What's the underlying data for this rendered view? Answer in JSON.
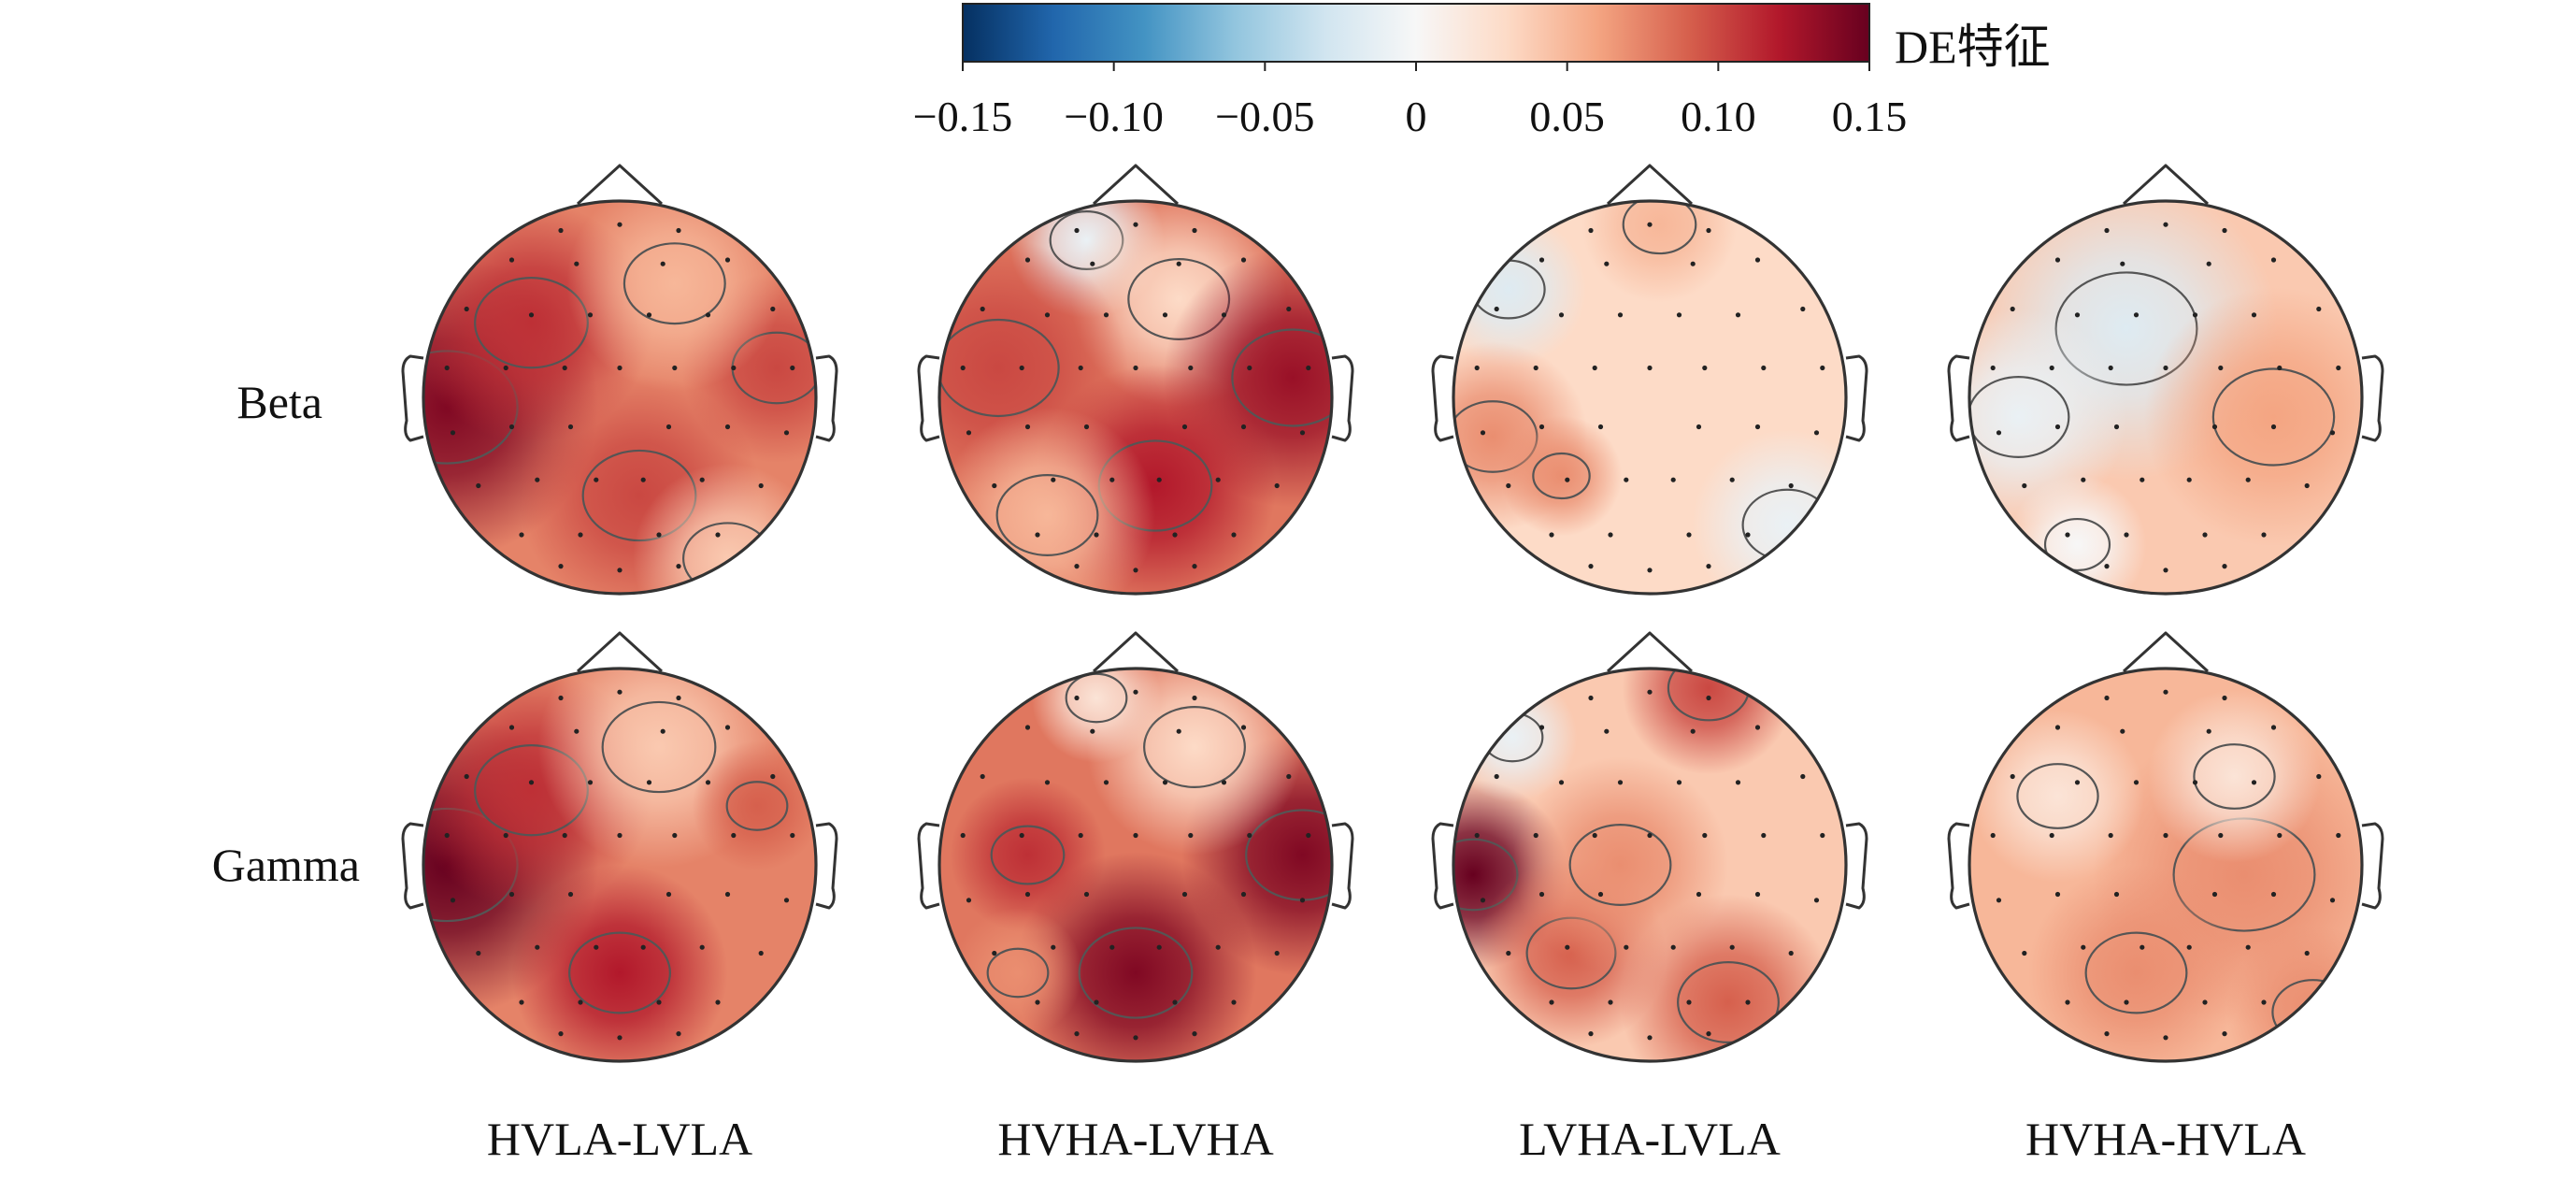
{
  "chart_data": {
    "type": "heatmap",
    "subtype": "eeg-topographic-map-grid",
    "rows": [
      "Beta",
      "Gamma"
    ],
    "columns": [
      "HVLA-LVLA",
      "HVHA-LVHA",
      "LVHA-LVLA",
      "HVHA-HVLA"
    ],
    "colorbar": {
      "title": "DE特征",
      "colormap": "RdBu_r",
      "range": [
        -0.15,
        0.15
      ],
      "ticks": [
        -0.15,
        -0.1,
        -0.05,
        0,
        0.05,
        0.1,
        0.15
      ],
      "tick_labels": [
        "−0.15",
        "−0.10",
        "−0.05",
        "0",
        "0.05",
        "0.10",
        "0.15"
      ]
    },
    "maps": [
      {
        "row": "Beta",
        "column": "HVLA-LVLA",
        "base": 0.075,
        "blobs": [
          {
            "u": -0.88,
            "v": 0.05,
            "value": 0.14,
            "spread": 0.35
          },
          {
            "u": -0.45,
            "v": -0.38,
            "value": 0.11,
            "spread": 0.28
          },
          {
            "u": 0.1,
            "v": 0.5,
            "value": 0.1,
            "spread": 0.28
          },
          {
            "u": 0.8,
            "v": -0.15,
            "value": 0.1,
            "spread": 0.22
          },
          {
            "u": 0.28,
            "v": -0.58,
            "value": 0.05,
            "spread": 0.25
          },
          {
            "u": 0.55,
            "v": 0.82,
            "value": 0.04,
            "spread": 0.22
          }
        ]
      },
      {
        "row": "Beta",
        "column": "HVHA-LVHA",
        "base": 0.08,
        "blobs": [
          {
            "u": -0.25,
            "v": -0.8,
            "value": -0.01,
            "spread": 0.18
          },
          {
            "u": 0.22,
            "v": -0.5,
            "value": 0.03,
            "spread": 0.25
          },
          {
            "u": 0.8,
            "v": -0.1,
            "value": 0.13,
            "spread": 0.3
          },
          {
            "u": 0.1,
            "v": 0.45,
            "value": 0.12,
            "spread": 0.28
          },
          {
            "u": -0.7,
            "v": -0.15,
            "value": 0.1,
            "spread": 0.3
          },
          {
            "u": -0.45,
            "v": 0.6,
            "value": 0.05,
            "spread": 0.25
          }
        ]
      },
      {
        "row": "Beta",
        "column": "LVHA-LVLA",
        "base": 0.03,
        "blobs": [
          {
            "u": -0.72,
            "v": -0.55,
            "value": -0.02,
            "spread": 0.18
          },
          {
            "u": -0.8,
            "v": 0.2,
            "value": 0.07,
            "spread": 0.22
          },
          {
            "u": -0.45,
            "v": 0.4,
            "value": 0.07,
            "spread": 0.14
          },
          {
            "u": 0.7,
            "v": 0.65,
            "value": -0.01,
            "spread": 0.22
          },
          {
            "u": 0.05,
            "v": -0.88,
            "value": 0.05,
            "spread": 0.18
          }
        ]
      },
      {
        "row": "Beta",
        "column": "HVHA-HVLA",
        "base": 0.04,
        "blobs": [
          {
            "u": -0.2,
            "v": -0.35,
            "value": -0.02,
            "spread": 0.35
          },
          {
            "u": -0.75,
            "v": 0.1,
            "value": -0.01,
            "spread": 0.25
          },
          {
            "u": -0.45,
            "v": 0.75,
            "value": 0.0,
            "spread": 0.16
          },
          {
            "u": 0.55,
            "v": 0.1,
            "value": 0.06,
            "spread": 0.3
          }
        ]
      },
      {
        "row": "Gamma",
        "column": "HVLA-LVLA",
        "base": 0.075,
        "blobs": [
          {
            "u": -0.88,
            "v": 0.0,
            "value": 0.15,
            "spread": 0.35
          },
          {
            "u": -0.45,
            "v": -0.38,
            "value": 0.11,
            "spread": 0.28
          },
          {
            "u": 0.0,
            "v": 0.55,
            "value": 0.12,
            "spread": 0.25
          },
          {
            "u": 0.2,
            "v": -0.6,
            "value": 0.04,
            "spread": 0.28
          },
          {
            "u": 0.7,
            "v": -0.3,
            "value": 0.09,
            "spread": 0.15
          }
        ]
      },
      {
        "row": "Gamma",
        "column": "HVHA-LVHA",
        "base": 0.08,
        "blobs": [
          {
            "u": 0.0,
            "v": 0.55,
            "value": 0.14,
            "spread": 0.28
          },
          {
            "u": 0.85,
            "v": -0.05,
            "value": 0.14,
            "spread": 0.28
          },
          {
            "u": -0.55,
            "v": -0.05,
            "value": 0.11,
            "spread": 0.18
          },
          {
            "u": 0.3,
            "v": -0.6,
            "value": 0.03,
            "spread": 0.25
          },
          {
            "u": -0.2,
            "v": -0.85,
            "value": 0.02,
            "spread": 0.15
          },
          {
            "u": -0.6,
            "v": 0.55,
            "value": 0.07,
            "spread": 0.15
          }
        ]
      },
      {
        "row": "Gamma",
        "column": "LVHA-LVLA",
        "base": 0.04,
        "blobs": [
          {
            "u": -0.9,
            "v": 0.05,
            "value": 0.15,
            "spread": 0.22
          },
          {
            "u": 0.3,
            "v": -0.9,
            "value": 0.1,
            "spread": 0.2
          },
          {
            "u": -0.4,
            "v": 0.45,
            "value": 0.09,
            "spread": 0.22
          },
          {
            "u": 0.4,
            "v": 0.7,
            "value": 0.09,
            "spread": 0.25
          },
          {
            "u": -0.15,
            "v": 0.0,
            "value": 0.07,
            "spread": 0.25
          },
          {
            "u": -0.7,
            "v": -0.65,
            "value": -0.01,
            "spread": 0.15
          }
        ]
      },
      {
        "row": "Gamma",
        "column": "HVHA-HVLA",
        "base": 0.05,
        "blobs": [
          {
            "u": 0.4,
            "v": 0.05,
            "value": 0.07,
            "spread": 0.35
          },
          {
            "u": 0.35,
            "v": -0.45,
            "value": 0.02,
            "spread": 0.2
          },
          {
            "u": -0.55,
            "v": -0.35,
            "value": 0.02,
            "spread": 0.2
          },
          {
            "u": -0.15,
            "v": 0.55,
            "value": 0.07,
            "spread": 0.25
          },
          {
            "u": 0.75,
            "v": 0.75,
            "value": 0.07,
            "spread": 0.2
          }
        ]
      }
    ]
  },
  "colors": {
    "colormap_stops": [
      "#053061",
      "#2166ac",
      "#4393c3",
      "#92c5de",
      "#d1e5f0",
      "#f7f7f7",
      "#fddbc7",
      "#f4a582",
      "#d6604d",
      "#b2182b",
      "#67001f"
    ],
    "outline": "#333333",
    "contour": "#555555",
    "sensor": "#222222"
  }
}
